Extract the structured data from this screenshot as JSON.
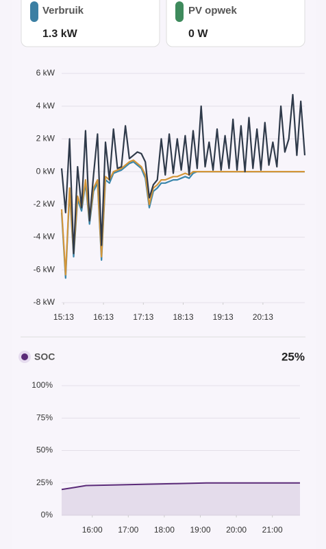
{
  "cards": [
    {
      "label": "Verbruik",
      "value": "1.3 kW",
      "color": "#3b7fa3"
    },
    {
      "label": "PV opwek",
      "value": "0 W",
      "color": "#3e8a5c"
    }
  ],
  "chart_data": [
    {
      "type": "line",
      "xlim": [
        910,
        1276
      ],
      "xticks": [
        {
          "value": 913,
          "label": "15:13"
        },
        {
          "value": 973,
          "label": "16:13"
        },
        {
          "value": 1033,
          "label": "17:13"
        },
        {
          "value": 1093,
          "label": "18:13"
        },
        {
          "value": 1153,
          "label": "19:13"
        },
        {
          "value": 1213,
          "label": "20:13"
        }
      ],
      "ylim": [
        -8,
        6
      ],
      "yticks": [
        {
          "value": 6,
          "label": "6 kW"
        },
        {
          "value": 4,
          "label": "4 kW"
        },
        {
          "value": 2,
          "label": "2 kW"
        },
        {
          "value": 0,
          "label": "0 kW"
        },
        {
          "value": -2,
          "label": "-2 kW"
        },
        {
          "value": -4,
          "label": "-4 kW"
        },
        {
          "value": -6,
          "label": "-6 kW"
        },
        {
          "value": -8,
          "label": "-8 kW"
        }
      ],
      "grid": true,
      "x": [
        910,
        916,
        922,
        928,
        934,
        940,
        946,
        952,
        958,
        964,
        970,
        976,
        982,
        988,
        994,
        1000,
        1006,
        1012,
        1018,
        1024,
        1030,
        1036,
        1042,
        1048,
        1054,
        1060,
        1066,
        1072,
        1078,
        1084,
        1090,
        1096,
        1102,
        1108,
        1114,
        1120,
        1126,
        1132,
        1138,
        1144,
        1150,
        1156,
        1162,
        1168,
        1174,
        1180,
        1186,
        1192,
        1198,
        1204,
        1210,
        1216,
        1222,
        1228,
        1234,
        1240,
        1246,
        1252,
        1258,
        1264,
        1270,
        1276
      ],
      "series": [
        {
          "color": "#3a86ab",
          "values": [
            -2.5,
            -6.5,
            -1.2,
            -5.2,
            -1.7,
            -2.4,
            -0.7,
            -3.2,
            -1.2,
            -0.7,
            -5.4,
            -0.5,
            -0.7,
            -0.1,
            0.0,
            0.1,
            0.3,
            0.5,
            0.6,
            0.4,
            0.2,
            -0.4,
            -2.2,
            -1.2,
            -1.0,
            -0.7,
            -0.7,
            -0.6,
            -0.5,
            -0.5,
            -0.4,
            -0.3,
            -0.4,
            -0.1,
            0.0,
            0.0,
            0.0,
            0.0,
            0.0,
            0.0,
            0.0,
            0.0,
            0.0,
            0.0,
            0.0,
            0.0,
            0.0,
            0.0,
            0.0,
            0.0,
            0.0,
            0.0,
            0.0,
            0.0,
            0.0,
            0.0,
            0.0,
            0.0,
            0.0,
            0.0,
            0.0,
            0.0
          ]
        },
        {
          "color": "#d3963a",
          "values": [
            -2.3,
            -6.3,
            -1.0,
            -5.0,
            -1.5,
            -2.2,
            -0.5,
            -3.0,
            -1.0,
            -0.5,
            -5.2,
            -0.3,
            -0.5,
            0.0,
            0.1,
            0.2,
            0.4,
            0.6,
            0.7,
            0.5,
            0.3,
            -0.2,
            -2.0,
            -1.0,
            -0.8,
            -0.5,
            -0.5,
            -0.4,
            -0.3,
            -0.3,
            -0.2,
            -0.1,
            -0.2,
            0.0,
            0.0,
            0.0,
            0.0,
            0.0,
            0.0,
            0.0,
            0.0,
            0.0,
            0.0,
            0.0,
            0.0,
            0.0,
            0.0,
            0.0,
            0.0,
            0.0,
            0.0,
            0.0,
            0.0,
            0.0,
            0.0,
            0.0,
            0.0,
            0.0,
            0.0,
            0.0,
            0.0,
            0.0
          ]
        },
        {
          "color": "#2f3a4a",
          "values": [
            0.2,
            -2.5,
            2.0,
            -5.0,
            0.3,
            -2.2,
            2.5,
            -3.0,
            -0.2,
            2.3,
            -4.5,
            1.8,
            -0.5,
            2.6,
            0.2,
            0.3,
            2.8,
            0.8,
            1.0,
            1.2,
            1.1,
            0.6,
            -1.6,
            -0.8,
            -0.5,
            2.0,
            -0.2,
            2.3,
            -0.1,
            2.0,
            0.1,
            2.2,
            -0.2,
            2.5,
            0.2,
            4.0,
            0.3,
            1.8,
            0.1,
            2.6,
            0.1,
            2.2,
            0.2,
            3.2,
            0.1,
            2.8,
            0.0,
            3.3,
            0.2,
            2.6,
            0.1,
            3.0,
            0.4,
            1.8,
            0.3,
            4.0,
            1.2,
            2.0,
            4.7,
            1.0,
            4.3,
            1.0
          ]
        }
      ]
    },
    {
      "type": "line",
      "area": true,
      "state": "25%",
      "xlim": [
        909,
        1306
      ],
      "xticks": [
        {
          "value": 960,
          "label": "16:00"
        },
        {
          "value": 1020,
          "label": "17:00"
        },
        {
          "value": 1080,
          "label": "18:00"
        },
        {
          "value": 1140,
          "label": "19:00"
        },
        {
          "value": 1200,
          "label": "20:00"
        },
        {
          "value": 1260,
          "label": "21:00"
        }
      ],
      "ylim": [
        0,
        100
      ],
      "yticks": [
        {
          "value": 100,
          "label": "100%"
        },
        {
          "value": 75,
          "label": "75%"
        },
        {
          "value": 50,
          "label": "50%"
        },
        {
          "value": 25,
          "label": "25%"
        },
        {
          "value": 0,
          "label": "0%"
        }
      ],
      "grid": true,
      "x": [
        909,
        930,
        950,
        1000,
        1050,
        1100,
        1150,
        1200,
        1250,
        1306
      ],
      "series": [
        {
          "name": "SOC",
          "color": "#5a2a78",
          "values": [
            20,
            21.5,
            23,
            23.5,
            24,
            24.5,
            25,
            25,
            25,
            25
          ]
        }
      ]
    }
  ]
}
